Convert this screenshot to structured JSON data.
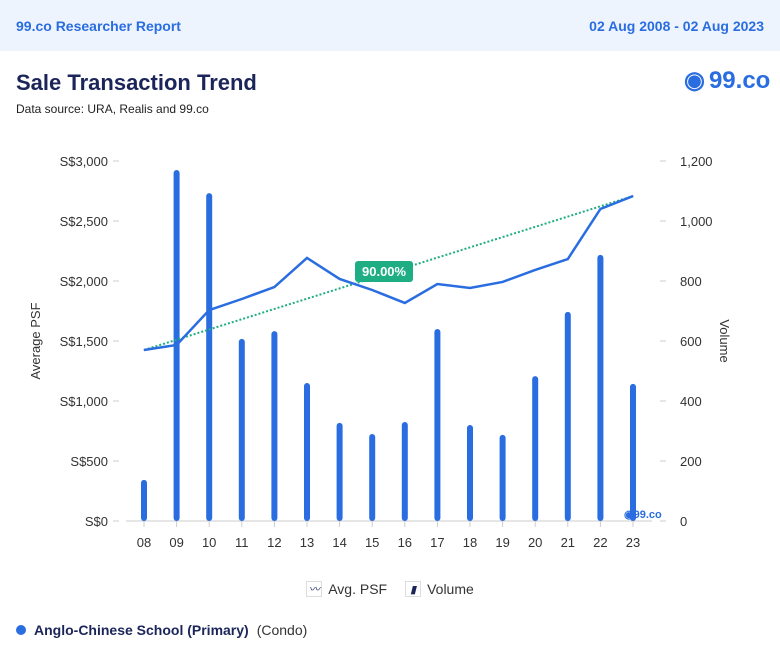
{
  "header": {
    "brand": "99.co Researcher Report",
    "date_range": "02 Aug 2008 - 02 Aug 2023"
  },
  "title": "Sale Transaction Trend",
  "source": "Data source: URA, Realis and 99.co",
  "logo": "99.co",
  "chart_data": {
    "type": "bar+line",
    "categories": [
      "08",
      "09",
      "10",
      "11",
      "12",
      "13",
      "14",
      "15",
      "16",
      "17",
      "18",
      "19",
      "20",
      "21",
      "22",
      "23"
    ],
    "series": [
      {
        "name": "Avg. PSF",
        "type": "line",
        "axis": "left",
        "values": [
          1425,
          1467,
          1758,
          1850,
          1950,
          2192,
          2017,
          1925,
          1817,
          1975,
          1942,
          1992,
          2092,
          2183,
          2600,
          2708
        ]
      },
      {
        "name": "Volume",
        "type": "bar",
        "axis": "right",
        "values": [
          137,
          1170,
          1093,
          607,
          633,
          460,
          327,
          290,
          330,
          640,
          320,
          287,
          483,
          697,
          887,
          457
        ]
      }
    ],
    "trend": {
      "label": "90.00%",
      "from": 1425,
      "to": 2708
    },
    "ylabel": "Average PSF",
    "y2label": "Volume",
    "ylim": [
      0,
      3000
    ],
    "y2lim": [
      0,
      1200
    ],
    "yticks": [
      "S$0",
      "S$500",
      "S$1,000",
      "S$1,500",
      "S$2,000",
      "S$2,500",
      "S$3,000"
    ],
    "y2ticks": [
      "0",
      "200",
      "400",
      "600",
      "800",
      "1,000",
      "1,200"
    ],
    "colors": {
      "bar": "#2a6de0",
      "line": "#2a6de0",
      "trend": "#1fae84"
    }
  },
  "legend": {
    "line": "Avg. PSF",
    "bar": "Volume"
  },
  "footer": {
    "name": "Anglo-Chinese School (Primary)",
    "type": "(Condo)"
  }
}
